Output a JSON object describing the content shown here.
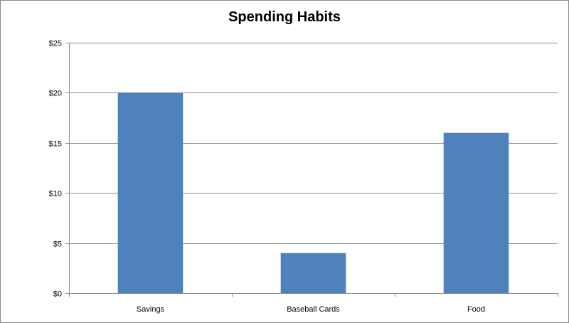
{
  "chart_data": {
    "type": "bar",
    "title": "Spending Habits",
    "categories": [
      "Savings",
      "Baseball Cards",
      "Food"
    ],
    "values": [
      20,
      4,
      16
    ],
    "ylim": [
      0,
      25
    ],
    "yticks": [
      "$0",
      "$5",
      "$10",
      "$15",
      "$20",
      "$25"
    ],
    "ytick_values": [
      0,
      5,
      10,
      15,
      20,
      25
    ],
    "grid": true,
    "xlabel": "",
    "ylabel": "",
    "colors": {
      "bar": "#4F81BD",
      "grid": "#8C8C8C",
      "axis": "#8C8C8C"
    }
  }
}
